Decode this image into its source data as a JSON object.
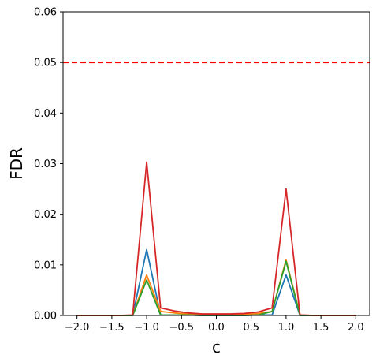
{
  "chart_data": {
    "type": "line",
    "title": "",
    "xlabel": "c",
    "ylabel": "FDR",
    "xlim": [
      -2.2,
      2.2
    ],
    "ylim": [
      0,
      0.06
    ],
    "xticks": [
      -2.0,
      -1.5,
      -1.0,
      -0.5,
      0.0,
      0.5,
      1.0,
      1.5,
      2.0
    ],
    "xtick_labels": [
      "−2.0",
      "−1.5",
      "−1.0",
      "−0.5",
      "0.0",
      "0.5",
      "1.0",
      "1.5",
      "2.0"
    ],
    "yticks": [
      0.0,
      0.01,
      0.02,
      0.03,
      0.04,
      0.05,
      0.06
    ],
    "ytick_labels": [
      "0.00",
      "0.01",
      "0.02",
      "0.03",
      "0.04",
      "0.05",
      "0.06"
    ],
    "grid": false,
    "legend": "none",
    "x": [
      -2.0,
      -1.8,
      -1.6,
      -1.4,
      -1.2,
      -1.0,
      -0.8,
      -0.6,
      -0.4,
      -0.2,
      0.0,
      0.2,
      0.4,
      0.6,
      0.8,
      1.0,
      1.2,
      1.4,
      1.6,
      1.8,
      2.0
    ],
    "series": [
      {
        "color": "#1f77b4",
        "values": [
          0,
          0,
          0,
          0,
          0,
          0.013,
          0.0001,
          0.0001,
          0.0001,
          0,
          0,
          0,
          0,
          0.0001,
          0.0001,
          0.008,
          0,
          0,
          0,
          0,
          0
        ]
      },
      {
        "color": "#ff7f0e",
        "values": [
          0,
          0,
          0,
          0,
          0,
          0.008,
          0.0008,
          0.0005,
          0.0003,
          0.0001,
          0.0001,
          0.0001,
          0.0002,
          0.0004,
          0.0008,
          0.011,
          0.0001,
          0,
          0,
          0,
          0
        ]
      },
      {
        "color": "#2ca02c",
        "values": [
          0,
          0,
          0,
          0,
          0,
          0.007,
          0.0001,
          0.0001,
          0.0001,
          0,
          0,
          0,
          0,
          0.0001,
          0.0008,
          0.0107,
          0,
          0,
          0,
          0,
          0
        ]
      },
      {
        "color": "#d62728",
        "values": [
          0,
          0,
          0,
          0,
          0.0001,
          0.0303,
          0.0015,
          0.0009,
          0.0005,
          0.0003,
          0.0003,
          0.0003,
          0.0004,
          0.0007,
          0.0015,
          0.025,
          0.0001,
          0,
          0,
          0,
          0
        ]
      }
    ],
    "reference_line": {
      "y": 0.05,
      "color": "#ff0000",
      "style": "dashed"
    }
  }
}
